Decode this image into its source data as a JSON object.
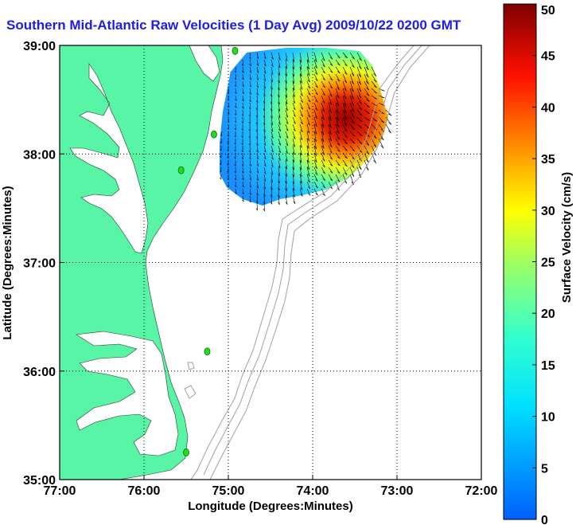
{
  "title": "Southern Mid-Atlantic Raw Velocities (1 Day Avg) 2009/10/22 0200 GMT",
  "map": {
    "x_axis": {
      "label": "Longitude (Degrees:Minutes)",
      "ticks": [
        "77:00",
        "76:00",
        "75:00",
        "74:00",
        "73:00",
        "72:00"
      ]
    },
    "y_axis": {
      "label": "Latitude (Degrees:Minutes)",
      "ticks": [
        "35:00",
        "36:00",
        "37:00",
        "38:00",
        "39:00"
      ]
    },
    "extent": {
      "lon": [
        -77,
        -72
      ],
      "lat": [
        35,
        39
      ]
    },
    "grid": "dotted",
    "colors": {
      "land": "#57f5a5",
      "ocean": "#ffffff",
      "bathymetry": "#a0a0a0",
      "radar_station": "#22dd22"
    }
  },
  "colorbar": {
    "label": "Surface Velocity (cm/s)",
    "ticks": [
      "0",
      "5",
      "10",
      "15",
      "20",
      "25",
      "30",
      "35",
      "40",
      "45",
      "50"
    ],
    "range": [
      0,
      50
    ],
    "colormap": "jet"
  }
}
